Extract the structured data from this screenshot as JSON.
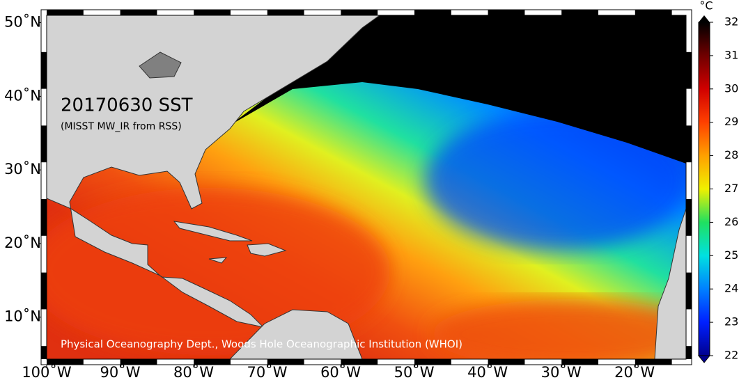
{
  "map": {
    "title": "20170630 SST",
    "subtitle": "(MISST MW_IR from RSS)",
    "credit": "Physical Oceanography Dept., Woods Hole Oceanographic Institution (WHOI)",
    "xlim": [
      -100,
      -13
    ],
    "ylim": [
      4.3,
      51
    ],
    "xticks": [
      {
        "value": -100,
        "label": "100˚W"
      },
      {
        "value": -90,
        "label": "90˚W"
      },
      {
        "value": -80,
        "label": "80˚W"
      },
      {
        "value": -70,
        "label": "70˚W"
      },
      {
        "value": -60,
        "label": "60˚W"
      },
      {
        "value": -50,
        "label": "50˚W"
      },
      {
        "value": -40,
        "label": "40˚W"
      },
      {
        "value": -30,
        "label": "30˚W"
      },
      {
        "value": -20,
        "label": "20˚W"
      }
    ],
    "yticks": [
      {
        "value": 10,
        "label": "10˚N"
      },
      {
        "value": 20,
        "label": "20˚N"
      },
      {
        "value": 30,
        "label": "30˚N"
      },
      {
        "value": 40,
        "label": "40˚N"
      },
      {
        "value": 50,
        "label": "50˚N"
      }
    ],
    "colorbar": {
      "unit": "°C",
      "lim": [
        22,
        32
      ],
      "ticks": [
        22,
        23,
        24,
        25,
        26,
        27,
        28,
        29,
        30,
        31,
        32
      ]
    }
  }
}
